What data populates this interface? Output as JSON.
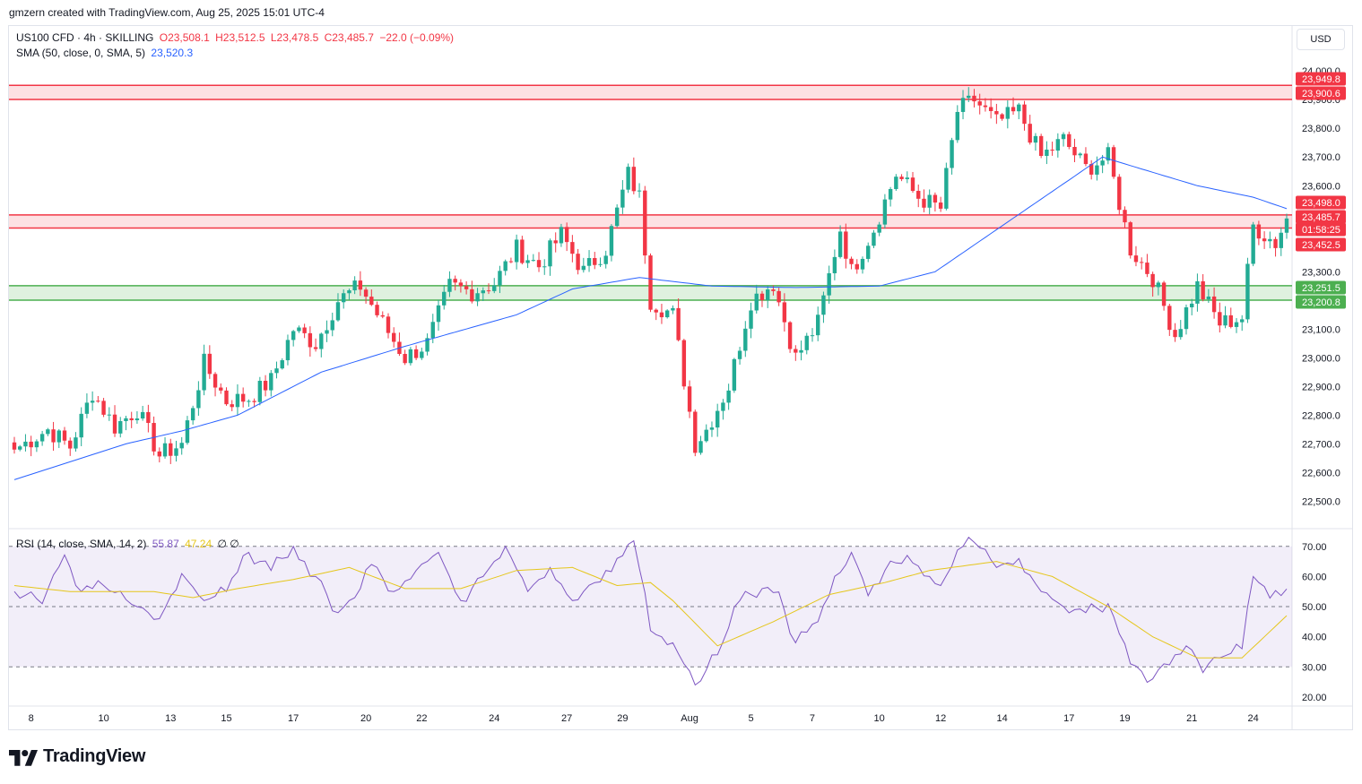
{
  "credit": "gmzern created with TradingView.com, Aug 25, 2025 15:01 UTC-4",
  "legend": {
    "symbol": "US100 CFD · 4h · SKILLING",
    "open": "O23,508.1",
    "high": "H23,512.5",
    "low": "L23,478.5",
    "close": "C23,485.7",
    "change": "−22.0 (−0.09%)",
    "sma_label": "SMA (50, close, 0, SMA, 5)",
    "sma_value": "23,520.3",
    "rsi_label": "RSI (14, close, SMA, 14, 2)",
    "rsi_value": "55.87",
    "rsi_ma_value": "47.24",
    "rsi_extra": "∅ ∅"
  },
  "currency": "USD",
  "brand": "TradingView",
  "colors": {
    "up": "#22ab94",
    "down": "#f23645",
    "sma": "#2962ff",
    "rsi": "#7e57c2",
    "rsi_ma": "#e5c61b",
    "support": "#4caf50",
    "resistance": "#f23645"
  },
  "chart_data": [
    {
      "type": "candlestick",
      "title": "US100 CFD · 4h · SKILLING",
      "ylim": [
        22420,
        24060
      ],
      "y_ticks": [
        "22,500.0",
        "22,600.0",
        "22,700.0",
        "22,800.0",
        "22,900.0",
        "23,000.0",
        "23,100.0",
        "23,200.0",
        "23,300.0",
        "23,400.0",
        "23,500.0",
        "23,600.0",
        "23,700.0",
        "23,800.0",
        "23,900.0",
        "24,000.0"
      ],
      "x_ticks": [
        "8",
        "10",
        "13",
        "15",
        "17",
        "20",
        "22",
        "24",
        "27",
        "29",
        "Aug",
        "5",
        "7",
        "10",
        "12",
        "14",
        "17",
        "19",
        "21",
        "24"
      ],
      "anchors": [
        {
          "i": 0,
          "c": 22680
        },
        {
          "i": 6,
          "c": 22750
        },
        {
          "i": 10,
          "c": 22690
        },
        {
          "i": 14,
          "c": 22880
        },
        {
          "i": 18,
          "c": 22760
        },
        {
          "i": 22,
          "c": 22820
        },
        {
          "i": 26,
          "c": 22660
        },
        {
          "i": 30,
          "c": 22700
        },
        {
          "i": 34,
          "c": 22980
        },
        {
          "i": 38,
          "c": 22850
        },
        {
          "i": 42,
          "c": 22860
        },
        {
          "i": 46,
          "c": 22920
        },
        {
          "i": 50,
          "c": 23100
        },
        {
          "i": 54,
          "c": 23050
        },
        {
          "i": 58,
          "c": 23200
        },
        {
          "i": 62,
          "c": 23250
        },
        {
          "i": 66,
          "c": 23120
        },
        {
          "i": 70,
          "c": 23000
        },
        {
          "i": 74,
          "c": 23050
        },
        {
          "i": 78,
          "c": 23250
        },
        {
          "i": 82,
          "c": 23230
        },
        {
          "i": 86,
          "c": 23260
        },
        {
          "i": 90,
          "c": 23380
        },
        {
          "i": 94,
          "c": 23320
        },
        {
          "i": 98,
          "c": 23430
        },
        {
          "i": 102,
          "c": 23300
        },
        {
          "i": 106,
          "c": 23380
        },
        {
          "i": 110,
          "c": 23640
        },
        {
          "i": 112,
          "c": 23560
        },
        {
          "i": 114,
          "c": 23200
        },
        {
          "i": 118,
          "c": 23150
        },
        {
          "i": 122,
          "c": 22700
        },
        {
          "i": 124,
          "c": 22750
        },
        {
          "i": 128,
          "c": 22900
        },
        {
          "i": 132,
          "c": 23200
        },
        {
          "i": 136,
          "c": 23260
        },
        {
          "i": 140,
          "c": 23000
        },
        {
          "i": 144,
          "c": 23120
        },
        {
          "i": 148,
          "c": 23450
        },
        {
          "i": 150,
          "c": 23300
        },
        {
          "i": 154,
          "c": 23450
        },
        {
          "i": 158,
          "c": 23640
        },
        {
          "i": 162,
          "c": 23560
        },
        {
          "i": 166,
          "c": 23520
        },
        {
          "i": 169,
          "c": 23860
        },
        {
          "i": 172,
          "c": 23900
        },
        {
          "i": 176,
          "c": 23820
        },
        {
          "i": 180,
          "c": 23860
        },
        {
          "i": 184,
          "c": 23700
        },
        {
          "i": 188,
          "c": 23760
        },
        {
          "i": 192,
          "c": 23660
        },
        {
          "i": 196,
          "c": 23700
        },
        {
          "i": 200,
          "c": 23380
        },
        {
          "i": 204,
          "c": 23280
        },
        {
          "i": 208,
          "c": 23080
        },
        {
          "i": 212,
          "c": 23250
        },
        {
          "i": 216,
          "c": 23120
        },
        {
          "i": 220,
          "c": 23140
        },
        {
          "i": 222,
          "c": 23460
        },
        {
          "i": 226,
          "c": 23400
        },
        {
          "i": 228,
          "c": 23485.7
        }
      ],
      "sma_anchors": [
        {
          "i": 0,
          "v": 22575
        },
        {
          "i": 20,
          "v": 22700
        },
        {
          "i": 30,
          "v": 22745
        },
        {
          "i": 40,
          "v": 22800
        },
        {
          "i": 55,
          "v": 22950
        },
        {
          "i": 70,
          "v": 23040
        },
        {
          "i": 90,
          "v": 23150
        },
        {
          "i": 100,
          "v": 23240
        },
        {
          "i": 112,
          "v": 23280
        },
        {
          "i": 125,
          "v": 23250
        },
        {
          "i": 140,
          "v": 23245
        },
        {
          "i": 155,
          "v": 23250
        },
        {
          "i": 165,
          "v": 23300
        },
        {
          "i": 180,
          "v": 23500
        },
        {
          "i": 195,
          "v": 23700
        },
        {
          "i": 200,
          "v": 23670
        },
        {
          "i": 212,
          "v": 23600
        },
        {
          "i": 222,
          "v": 23560
        },
        {
          "i": 228,
          "v": 23520
        }
      ],
      "zones": [
        {
          "kind": "resistance",
          "top": 23949.8,
          "bottom": 23900.6
        },
        {
          "kind": "resistance",
          "top": 23498.0,
          "bottom": 23452.5
        },
        {
          "kind": "support",
          "top": 23251.5,
          "bottom": 23200.8
        }
      ],
      "price_badges": [
        {
          "label": "23,949.8",
          "value": 23949.8,
          "color": "#f23645"
        },
        {
          "label": "23,900.6",
          "value": 23900.6,
          "color": "#f23645"
        },
        {
          "label": "23,498.0",
          "value": 23498.0,
          "color": "#f23645"
        },
        {
          "label": "23,485.7",
          "value": 23485.7,
          "color": "#f23645"
        },
        {
          "label": "01:58:25",
          "value": 23462,
          "color": "#f23645"
        },
        {
          "label": "23,452.5",
          "value": 23452.5,
          "color": "#f23645"
        },
        {
          "label": "23,251.5",
          "value": 23251.5,
          "color": "#4caf50"
        },
        {
          "label": "23,200.8",
          "value": 23200.8,
          "color": "#4caf50"
        }
      ]
    },
    {
      "type": "line",
      "title": "RSI (14, close, SMA, 14, 2)",
      "ylim": [
        17,
        75
      ],
      "y_ticks": [
        "20.00",
        "30.00",
        "40.00",
        "50.00",
        "60.00",
        "70.00"
      ],
      "band": [
        30,
        70
      ],
      "rsi_anchors": [
        {
          "i": 0,
          "v": 55
        },
        {
          "i": 5,
          "v": 52
        },
        {
          "i": 9,
          "v": 67
        },
        {
          "i": 12,
          "v": 55
        },
        {
          "i": 16,
          "v": 57
        },
        {
          "i": 22,
          "v": 50
        },
        {
          "i": 26,
          "v": 46
        },
        {
          "i": 30,
          "v": 61
        },
        {
          "i": 34,
          "v": 52
        },
        {
          "i": 38,
          "v": 55
        },
        {
          "i": 42,
          "v": 68
        },
        {
          "i": 46,
          "v": 62
        },
        {
          "i": 50,
          "v": 70
        },
        {
          "i": 54,
          "v": 60
        },
        {
          "i": 58,
          "v": 48
        },
        {
          "i": 62,
          "v": 56
        },
        {
          "i": 64,
          "v": 64
        },
        {
          "i": 68,
          "v": 55
        },
        {
          "i": 72,
          "v": 62
        },
        {
          "i": 76,
          "v": 68
        },
        {
          "i": 80,
          "v": 52
        },
        {
          "i": 84,
          "v": 60
        },
        {
          "i": 88,
          "v": 70
        },
        {
          "i": 92,
          "v": 55
        },
        {
          "i": 96,
          "v": 63
        },
        {
          "i": 100,
          "v": 52
        },
        {
          "i": 104,
          "v": 58
        },
        {
          "i": 108,
          "v": 66
        },
        {
          "i": 111,
          "v": 73
        },
        {
          "i": 114,
          "v": 42
        },
        {
          "i": 118,
          "v": 38
        },
        {
          "i": 122,
          "v": 24
        },
        {
          "i": 126,
          "v": 34
        },
        {
          "i": 130,
          "v": 52
        },
        {
          "i": 134,
          "v": 56
        },
        {
          "i": 137,
          "v": 54
        },
        {
          "i": 140,
          "v": 38
        },
        {
          "i": 144,
          "v": 45
        },
        {
          "i": 147,
          "v": 58
        },
        {
          "i": 150,
          "v": 68
        },
        {
          "i": 153,
          "v": 55
        },
        {
          "i": 156,
          "v": 62
        },
        {
          "i": 160,
          "v": 67
        },
        {
          "i": 164,
          "v": 60
        },
        {
          "i": 166,
          "v": 57
        },
        {
          "i": 170,
          "v": 70
        },
        {
          "i": 173,
          "v": 72
        },
        {
          "i": 176,
          "v": 63
        },
        {
          "i": 180,
          "v": 66
        },
        {
          "i": 184,
          "v": 55
        },
        {
          "i": 188,
          "v": 50
        },
        {
          "i": 192,
          "v": 48
        },
        {
          "i": 196,
          "v": 51
        },
        {
          "i": 200,
          "v": 31
        },
        {
          "i": 204,
          "v": 26
        },
        {
          "i": 206,
          "v": 31
        },
        {
          "i": 210,
          "v": 37
        },
        {
          "i": 213,
          "v": 30
        },
        {
          "i": 216,
          "v": 33
        },
        {
          "i": 220,
          "v": 36
        },
        {
          "i": 222,
          "v": 60
        },
        {
          "i": 225,
          "v": 55
        },
        {
          "i": 228,
          "v": 56
        }
      ],
      "rsi_ma_anchors": [
        {
          "i": 0,
          "v": 57
        },
        {
          "i": 10,
          "v": 55
        },
        {
          "i": 25,
          "v": 55
        },
        {
          "i": 32,
          "v": 53
        },
        {
          "i": 40,
          "v": 56
        },
        {
          "i": 50,
          "v": 59
        },
        {
          "i": 60,
          "v": 63
        },
        {
          "i": 70,
          "v": 56
        },
        {
          "i": 80,
          "v": 56
        },
        {
          "i": 90,
          "v": 62
        },
        {
          "i": 100,
          "v": 63
        },
        {
          "i": 108,
          "v": 57
        },
        {
          "i": 114,
          "v": 58
        },
        {
          "i": 118,
          "v": 52
        },
        {
          "i": 126,
          "v": 37
        },
        {
          "i": 136,
          "v": 45
        },
        {
          "i": 146,
          "v": 54
        },
        {
          "i": 156,
          "v": 58
        },
        {
          "i": 164,
          "v": 62
        },
        {
          "i": 176,
          "v": 65
        },
        {
          "i": 186,
          "v": 60
        },
        {
          "i": 196,
          "v": 50
        },
        {
          "i": 204,
          "v": 40
        },
        {
          "i": 212,
          "v": 33
        },
        {
          "i": 220,
          "v": 33
        },
        {
          "i": 228,
          "v": 47
        }
      ]
    }
  ]
}
